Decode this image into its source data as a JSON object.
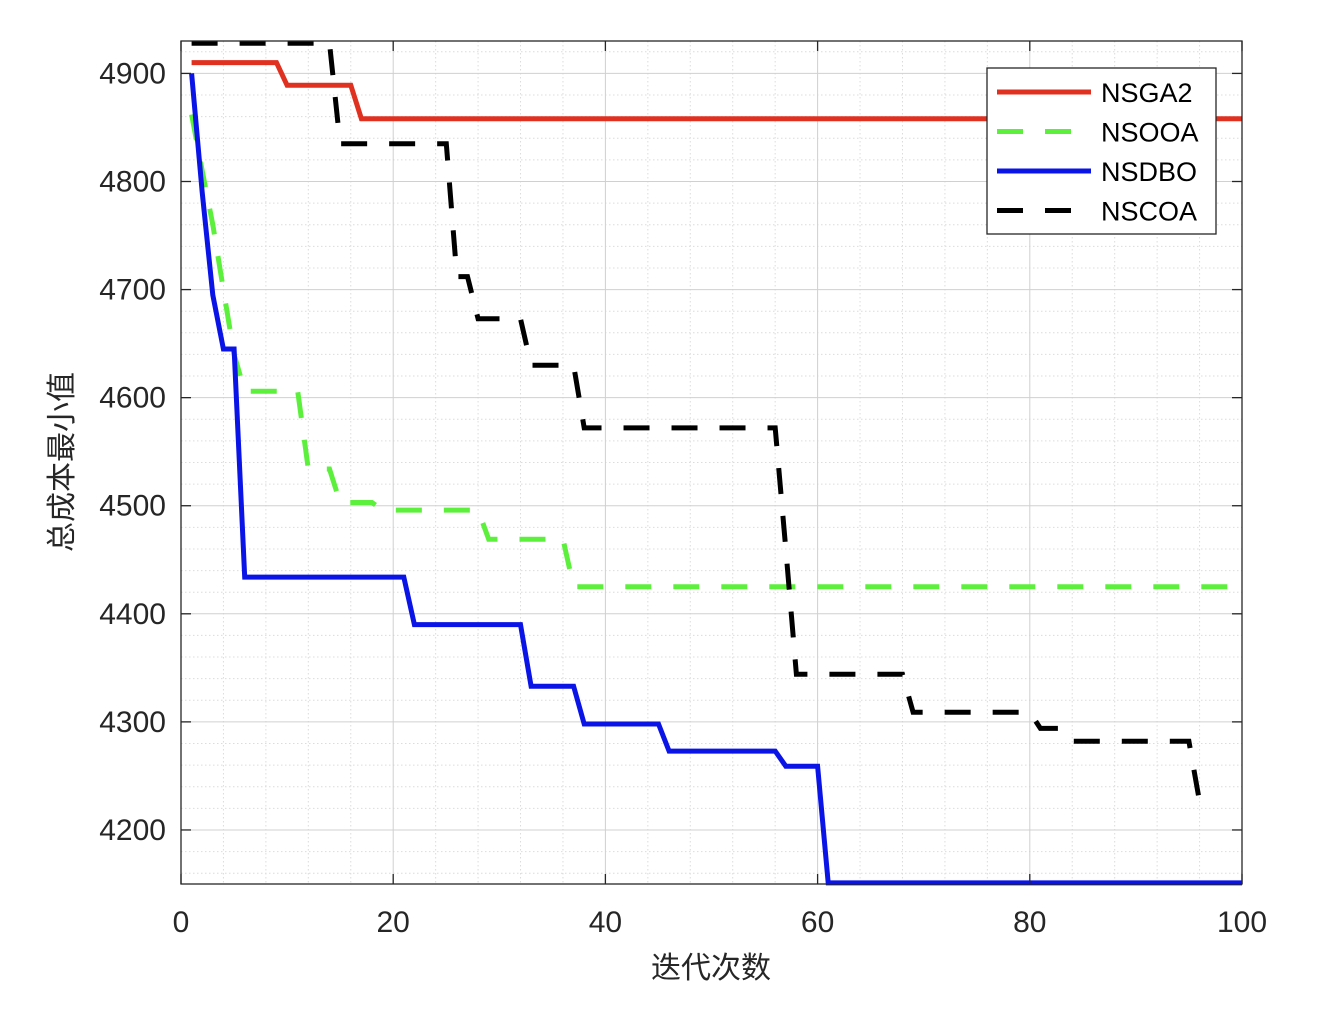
{
  "chart_data": {
    "type": "line",
    "xlabel": "迭代次数",
    "ylabel": "总成本最小值",
    "xlim": [
      0,
      100
    ],
    "ylim": [
      4150,
      4930
    ],
    "xticks": [
      0,
      20,
      40,
      60,
      80,
      100
    ],
    "yticks": [
      4200,
      4300,
      4400,
      4500,
      4600,
      4700,
      4800,
      4900
    ],
    "grid": true,
    "minor_grid": true,
    "legend_position": "top-right",
    "series": [
      {
        "name": "NSGA2",
        "color": "#e03020",
        "style": "solid",
        "points": [
          [
            1,
            4910
          ],
          [
            9,
            4910
          ],
          [
            10,
            4889
          ],
          [
            16,
            4889
          ],
          [
            17,
            4858
          ],
          [
            100,
            4858
          ]
        ]
      },
      {
        "name": "NSOOA",
        "color": "#5cf03c",
        "style": "dashed",
        "points": [
          [
            1,
            4862
          ],
          [
            2,
            4810
          ],
          [
            3,
            4760
          ],
          [
            4,
            4700
          ],
          [
            5,
            4640
          ],
          [
            6,
            4606
          ],
          [
            11,
            4606
          ],
          [
            12,
            4534
          ],
          [
            14,
            4534
          ],
          [
            15,
            4503
          ],
          [
            18,
            4503
          ],
          [
            19,
            4496
          ],
          [
            28,
            4496
          ],
          [
            29,
            4469
          ],
          [
            36,
            4469
          ],
          [
            37,
            4425
          ],
          [
            100,
            4425
          ]
        ]
      },
      {
        "name": "NSDBO",
        "color": "#0a14e6",
        "style": "solid",
        "points": [
          [
            1,
            4900
          ],
          [
            2,
            4790
          ],
          [
            3,
            4695
          ],
          [
            4,
            4645
          ],
          [
            5,
            4645
          ],
          [
            6,
            4434
          ],
          [
            21,
            4434
          ],
          [
            22,
            4390
          ],
          [
            32,
            4390
          ],
          [
            33,
            4333
          ],
          [
            37,
            4333
          ],
          [
            38,
            4298
          ],
          [
            45,
            4298
          ],
          [
            46,
            4273
          ],
          [
            56,
            4273
          ],
          [
            57,
            4259
          ],
          [
            60,
            4259
          ],
          [
            61,
            4151
          ],
          [
            100,
            4151
          ]
        ]
      },
      {
        "name": "NSCOA",
        "color": "#000000",
        "style": "dashed",
        "points": [
          [
            1,
            4928
          ],
          [
            14,
            4928
          ],
          [
            15,
            4835
          ],
          [
            25,
            4835
          ],
          [
            26,
            4712
          ],
          [
            27,
            4712
          ],
          [
            28,
            4673
          ],
          [
            32,
            4673
          ],
          [
            33,
            4630
          ],
          [
            37,
            4630
          ],
          [
            38,
            4572
          ],
          [
            56,
            4572
          ],
          [
            57,
            4460
          ],
          [
            58,
            4344
          ],
          [
            68,
            4344
          ],
          [
            69,
            4309
          ],
          [
            80,
            4309
          ],
          [
            81,
            4294
          ],
          [
            83,
            4294
          ],
          [
            84,
            4282
          ],
          [
            95,
            4282
          ],
          [
            96,
            4226
          ],
          [
            97,
            4226
          ]
        ]
      }
    ]
  }
}
